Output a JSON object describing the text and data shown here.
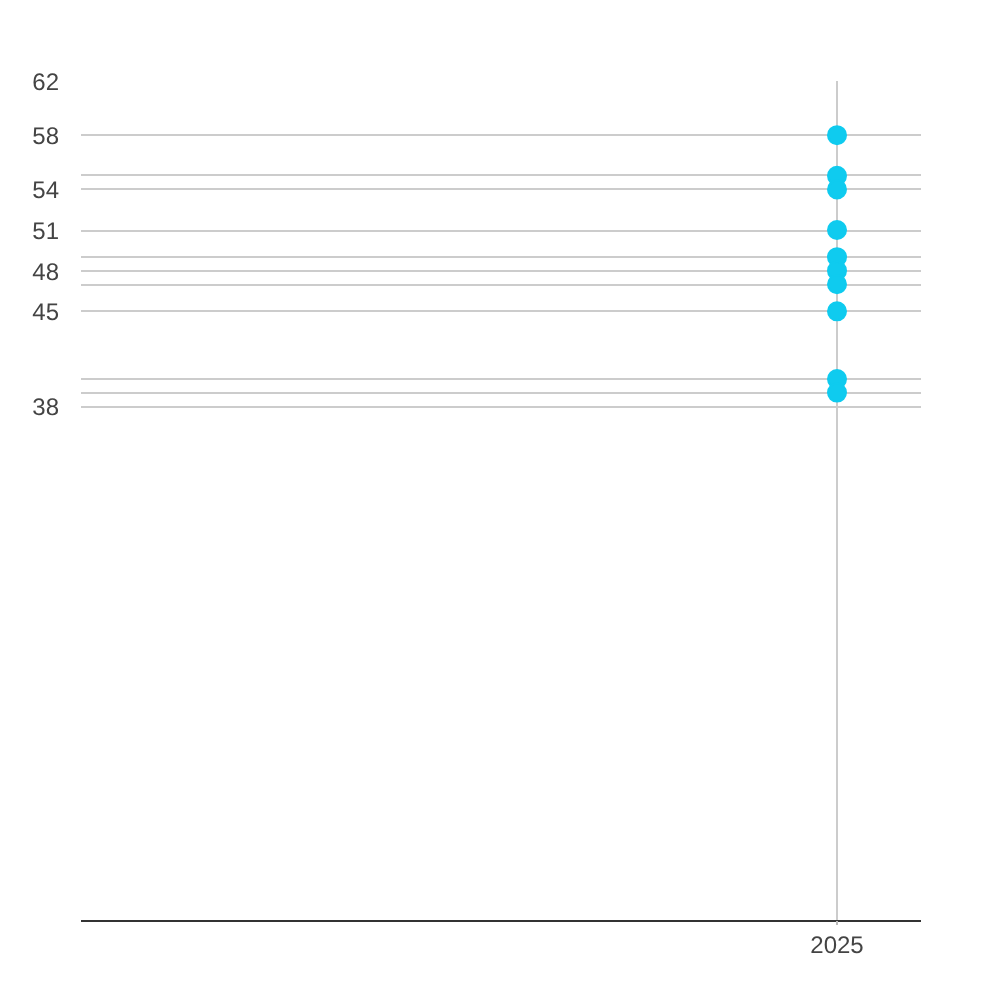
{
  "chart_data": {
    "type": "scatter",
    "categories": [
      "2025"
    ],
    "series": [
      {
        "color": "#0fcbef",
        "values": [
          58
        ]
      },
      {
        "color": "#0fcbef",
        "values": [
          55
        ]
      },
      {
        "color": "#0fcbef",
        "values": [
          54
        ]
      },
      {
        "color": "#0fcbef",
        "values": [
          51
        ]
      },
      {
        "color": "#0fcbef",
        "values": [
          49
        ]
      },
      {
        "color": "#0fcbef",
        "values": [
          48
        ]
      },
      {
        "color": "#0fcbef",
        "values": [
          47
        ]
      },
      {
        "color": "#0fcbef",
        "values": [
          45
        ]
      },
      {
        "color": "#0fcbef",
        "values": [
          40
        ]
      },
      {
        "color": "#0fcbef",
        "values": [
          39
        ]
      }
    ],
    "marker": "circle",
    "ylim": [
      0,
      62
    ],
    "yticks": [
      62,
      58,
      {
        "value": 55,
        "label": null
      },
      54,
      51,
      {
        "value": 49,
        "label": null
      },
      48,
      {
        "value": 47,
        "label": null
      },
      45,
      {
        "value": 40,
        "label": null
      },
      {
        "value": 39,
        "label": null
      },
      38
    ],
    "grid": true
  }
}
